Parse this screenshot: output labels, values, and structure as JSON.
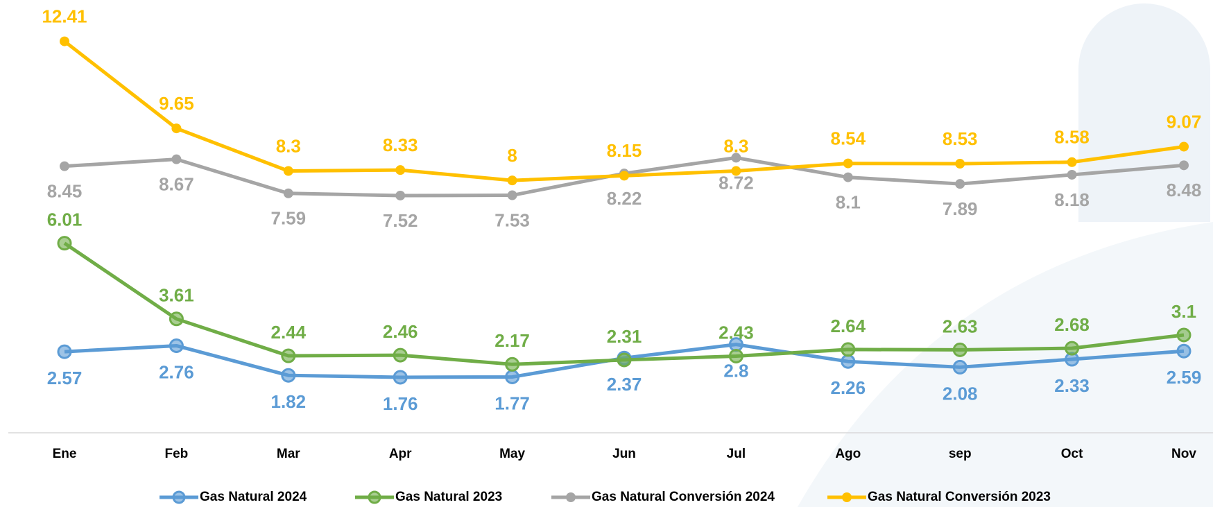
{
  "chart_data": {
    "type": "line",
    "categories": [
      "Ene",
      "Feb",
      "Mar",
      "Apr",
      "May",
      "Jun",
      "Jul",
      "Ago",
      "sep",
      "Oct",
      "Nov"
    ],
    "series": [
      {
        "name": "Gas Natural 2024",
        "color": "#5b9bd5",
        "values": [
          2.57,
          2.76,
          1.82,
          1.76,
          1.77,
          2.37,
          2.8,
          2.26,
          2.08,
          2.33,
          2.59
        ]
      },
      {
        "name": "Gas Natural 2023",
        "color": "#70ad47",
        "values": [
          6.01,
          3.61,
          2.44,
          2.46,
          2.17,
          2.31,
          2.43,
          2.64,
          2.63,
          2.68,
          3.1
        ]
      },
      {
        "name": "Gas Natural Conversión 2024",
        "color": "#a5a5a5",
        "values": [
          8.45,
          8.67,
          7.59,
          7.52,
          7.53,
          8.22,
          8.72,
          8.1,
          7.89,
          8.18,
          8.48
        ]
      },
      {
        "name": "Gas Natural Conversión 2023",
        "color": "#ffc000",
        "values": [
          12.41,
          9.65,
          8.3,
          8.33,
          8.0,
          8.15,
          8.3,
          8.54,
          8.53,
          8.58,
          9.07
        ]
      }
    ],
    "ylim": [
      0,
      13.5
    ],
    "legend": "bottom"
  }
}
